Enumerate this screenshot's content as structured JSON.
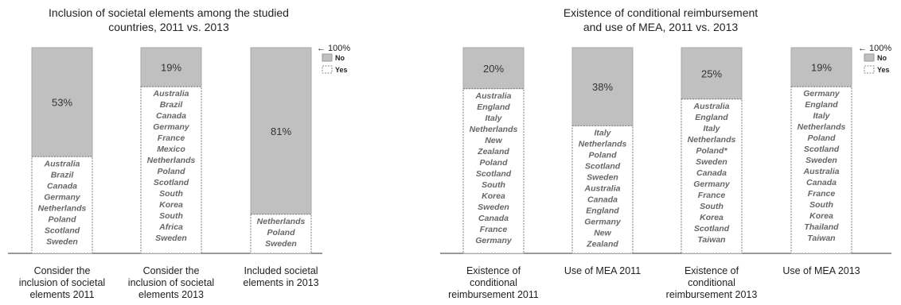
{
  "chart_data": [
    {
      "type": "bar",
      "stacked": true,
      "title": [
        "Inclusion of societal elements among the studied",
        "countries, 2011 vs. 2013"
      ],
      "top_marker": "← 100%",
      "legend": [
        {
          "name": "No",
          "color": "#c0c0c0",
          "style": "solid"
        },
        {
          "name": "Yes",
          "color": "#ffffff",
          "style": "dashed"
        }
      ],
      "legend_position": "top-right",
      "ylim": [
        0,
        100
      ],
      "categories": [
        [
          "Consider the",
          "inclusion of societal",
          "elements 2011"
        ],
        [
          "Consider the",
          "inclusion of societal",
          "elements 2013"
        ],
        [
          "Included societal",
          "elements in 2013"
        ]
      ],
      "series": [
        {
          "name": "No",
          "values": [
            53,
            19,
            81
          ],
          "labels": [
            "53%",
            "19%",
            "81%"
          ]
        },
        {
          "name": "Yes",
          "values": [
            47,
            81,
            19
          ]
        }
      ],
      "yes_countries": [
        [
          "Australia",
          "Brazil",
          "Canada",
          "Germany",
          "Netherlands",
          "Poland",
          "Scotland",
          "Sweden"
        ],
        [
          "Australia",
          "Brazil",
          "Canada",
          "Germany",
          "France",
          "Mexico",
          "Netherlands",
          "Poland",
          "Scotland",
          "South",
          "Korea",
          "South",
          "Africa",
          "Sweden"
        ],
        [
          "Netherlands",
          "Poland",
          "Sweden"
        ]
      ]
    },
    {
      "type": "bar",
      "stacked": true,
      "title": [
        "Existence of conditional reimbursement",
        "and use of MEA, 2011 vs. 2013"
      ],
      "top_marker": "← 100%",
      "legend": [
        {
          "name": "No",
          "color": "#c0c0c0",
          "style": "solid"
        },
        {
          "name": "Yes",
          "color": "#ffffff",
          "style": "dashed"
        }
      ],
      "legend_position": "top-right",
      "ylim": [
        0,
        100
      ],
      "categories": [
        [
          "Existence of",
          "conditional",
          "reimbursement 2011"
        ],
        [
          "Use of MEA 2011"
        ],
        [
          "Existence of",
          "conditional",
          "reimbursement 2013"
        ],
        [
          "Use of MEA 2013"
        ]
      ],
      "series": [
        {
          "name": "No",
          "values": [
            20,
            38,
            25,
            19
          ],
          "labels": [
            "20%",
            "38%",
            "25%",
            "19%"
          ]
        },
        {
          "name": "Yes",
          "values": [
            80,
            62,
            75,
            81
          ]
        }
      ],
      "yes_countries": [
        [
          "Australia",
          "England",
          "Italy",
          "Netherlands",
          "New",
          "Zealand",
          "Poland",
          "Scotland",
          "South",
          "Korea",
          "Sweden",
          "Canada",
          "France",
          "Germany"
        ],
        [
          "Italy",
          "Netherlands",
          "Poland",
          "Scotland",
          "Sweden",
          "Australia",
          "Canada",
          "England",
          "Germany",
          "New",
          "Zealand"
        ],
        [
          "Australia",
          "England",
          "Italy",
          "Netherlands",
          "Poland*",
          "Sweden",
          "Canada",
          "Germany",
          "France",
          "South",
          "Korea",
          "Scotland",
          "Taiwan"
        ],
        [
          "Germany",
          "England",
          "Italy",
          "Netherlands",
          "Poland",
          "Scotland",
          "Sweden",
          "Australia",
          "Canada",
          "France",
          "South",
          "Korea",
          "Thailand",
          "Taiwan"
        ]
      ]
    }
  ]
}
